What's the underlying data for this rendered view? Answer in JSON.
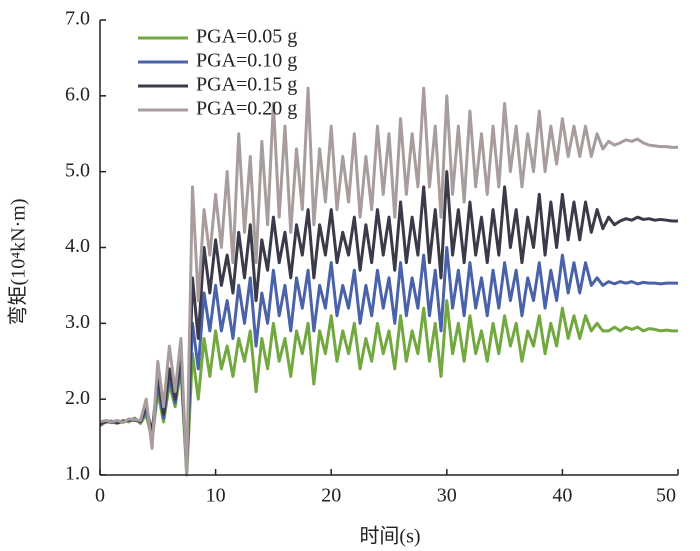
{
  "chart_data": {
    "type": "line",
    "xlabel": "时间(s)",
    "ylabel": "弯矩(10⁴kN·m)",
    "xlim": [
      0,
      50
    ],
    "xticks": [
      0,
      10,
      20,
      30,
      40,
      50
    ],
    "ylim": [
      1,
      7
    ],
    "yticks": [
      {
        "value": 1,
        "label": "1.0"
      },
      {
        "value": 2,
        "label": "2.0"
      },
      {
        "value": 3,
        "label": "3.0"
      },
      {
        "value": 4,
        "label": "4.0"
      },
      {
        "value": 5,
        "label": "5.0"
      },
      {
        "value": 6,
        "label": "6.0"
      },
      {
        "value": 7,
        "label": "7.0"
      }
    ],
    "grid": false,
    "legend": "upper left",
    "x": [
      0,
      0.5,
      1,
      1.5,
      2,
      2.5,
      3,
      3.5,
      4,
      4.5,
      5,
      5.5,
      6,
      6.5,
      7,
      7.5,
      8,
      8.5,
      9,
      9.5,
      10,
      10.5,
      11,
      11.5,
      12,
      12.5,
      13,
      13.5,
      14,
      14.5,
      15,
      15.5,
      16,
      16.5,
      17,
      17.5,
      18,
      18.5,
      19,
      19.5,
      20,
      20.5,
      21,
      21.5,
      22,
      22.5,
      23,
      23.5,
      24,
      24.5,
      25,
      25.5,
      26,
      26.5,
      27,
      27.5,
      28,
      28.5,
      29,
      29.5,
      30,
      30.5,
      31,
      31.5,
      32,
      32.5,
      33,
      33.5,
      34,
      34.5,
      35,
      35.5,
      36,
      36.5,
      37,
      37.5,
      38,
      38.5,
      39,
      39.5,
      40,
      40.5,
      41,
      41.5,
      42,
      42.5,
      43,
      43.5,
      44,
      44.5,
      45,
      45.5,
      46,
      46.5,
      47,
      47.5,
      48,
      48.5,
      49,
      49.5,
      50
    ],
    "series": [
      {
        "name": "PGA=0.05 g",
        "color": "#72a840",
        "values": [
          1.65,
          1.7,
          1.7,
          1.68,
          1.72,
          1.7,
          1.75,
          1.68,
          1.8,
          1.45,
          2.1,
          1.7,
          2.2,
          1.9,
          2.4,
          1.0,
          2.6,
          2.0,
          2.8,
          2.3,
          2.9,
          2.4,
          2.7,
          2.3,
          2.8,
          2.5,
          2.9,
          2.1,
          2.8,
          2.4,
          3.0,
          2.5,
          2.8,
          2.3,
          2.9,
          2.6,
          3.0,
          2.2,
          2.9,
          2.6,
          3.1,
          2.5,
          2.9,
          2.6,
          3.0,
          2.4,
          2.8,
          2.5,
          3.0,
          2.6,
          2.9,
          2.4,
          3.1,
          2.5,
          2.9,
          2.6,
          3.2,
          2.5,
          3.0,
          2.3,
          3.3,
          2.6,
          3.0,
          2.5,
          3.1,
          2.6,
          2.9,
          2.5,
          3.0,
          2.6,
          3.1,
          2.7,
          3.0,
          2.5,
          2.9,
          2.7,
          3.1,
          2.6,
          3.0,
          2.7,
          3.2,
          2.8,
          3.1,
          2.8,
          3.1,
          2.9,
          3.0,
          2.9,
          2.9,
          2.95,
          2.9,
          2.95,
          2.92,
          2.95,
          2.9,
          2.93,
          2.92,
          2.9,
          2.91,
          2.9,
          2.9
        ]
      },
      {
        "name": "PGA=0.10 g",
        "color": "#4a63a8",
        "values": [
          1.66,
          1.71,
          1.69,
          1.7,
          1.71,
          1.72,
          1.74,
          1.7,
          1.85,
          1.5,
          2.2,
          1.75,
          2.3,
          1.95,
          2.5,
          1.1,
          3.0,
          2.4,
          3.4,
          2.9,
          3.5,
          2.9,
          3.3,
          2.8,
          3.5,
          3.0,
          3.6,
          2.7,
          3.4,
          3.0,
          3.7,
          3.1,
          3.5,
          2.9,
          3.6,
          3.2,
          3.7,
          2.9,
          3.5,
          3.2,
          3.8,
          3.1,
          3.5,
          3.2,
          3.7,
          3.0,
          3.5,
          3.1,
          3.7,
          3.2,
          3.6,
          3.0,
          3.8,
          3.1,
          3.6,
          3.2,
          3.9,
          3.1,
          3.7,
          2.9,
          4.0,
          3.2,
          3.7,
          3.1,
          3.8,
          3.2,
          3.6,
          3.1,
          3.7,
          3.2,
          3.8,
          3.3,
          3.7,
          3.1,
          3.6,
          3.3,
          3.8,
          3.2,
          3.7,
          3.3,
          3.9,
          3.4,
          3.8,
          3.4,
          3.8,
          3.5,
          3.6,
          3.5,
          3.55,
          3.52,
          3.55,
          3.53,
          3.55,
          3.52,
          3.54,
          3.53,
          3.53,
          3.52,
          3.53,
          3.53,
          3.53
        ]
      },
      {
        "name": "PGA=0.15 g",
        "color": "#3a3a48",
        "values": [
          1.68,
          1.7,
          1.71,
          1.69,
          1.7,
          1.73,
          1.72,
          1.71,
          1.9,
          1.55,
          2.3,
          1.8,
          2.4,
          2.0,
          2.6,
          1.05,
          3.6,
          2.8,
          4.0,
          3.4,
          4.1,
          3.5,
          3.9,
          3.4,
          4.2,
          3.6,
          4.3,
          3.3,
          4.1,
          3.7,
          4.4,
          3.8,
          4.2,
          3.6,
          4.3,
          3.9,
          4.5,
          3.6,
          4.3,
          3.9,
          4.5,
          3.8,
          4.2,
          3.9,
          4.4,
          3.7,
          4.3,
          3.8,
          4.5,
          3.9,
          4.4,
          3.7,
          4.6,
          3.8,
          4.4,
          3.9,
          4.8,
          3.8,
          4.5,
          3.6,
          5.0,
          3.9,
          4.5,
          3.8,
          4.6,
          3.9,
          4.4,
          3.8,
          4.5,
          3.9,
          4.8,
          4.0,
          4.5,
          3.8,
          4.4,
          4.0,
          4.7,
          3.9,
          4.6,
          4.0,
          4.7,
          4.1,
          4.6,
          4.1,
          4.6,
          4.2,
          4.5,
          4.25,
          4.4,
          4.3,
          4.35,
          4.38,
          4.36,
          4.4,
          4.37,
          4.38,
          4.36,
          4.37,
          4.36,
          4.35,
          4.35
        ]
      },
      {
        "name": "PGA=0.20 g",
        "color": "#a89c9c",
        "values": [
          1.7,
          1.72,
          1.7,
          1.72,
          1.69,
          1.74,
          1.73,
          1.72,
          2.0,
          1.35,
          2.5,
          1.9,
          2.7,
          2.1,
          2.8,
          1.0,
          4.8,
          3.3,
          4.5,
          3.9,
          4.7,
          4.0,
          5.0,
          3.8,
          5.5,
          4.2,
          5.2,
          3.8,
          5.4,
          4.3,
          5.9,
          4.4,
          5.6,
          4.2,
          5.3,
          4.5,
          6.1,
          4.3,
          5.3,
          4.6,
          5.6,
          4.5,
          5.2,
          4.6,
          5.5,
          4.4,
          5.2,
          4.5,
          5.6,
          4.7,
          5.5,
          4.4,
          5.7,
          4.7,
          5.5,
          4.8,
          6.1,
          4.8,
          5.6,
          4.4,
          6.0,
          4.7,
          5.6,
          4.6,
          5.8,
          4.8,
          5.5,
          4.7,
          5.6,
          4.8,
          5.9,
          5.0,
          5.6,
          4.8,
          5.5,
          5.0,
          5.8,
          5.0,
          5.6,
          5.1,
          5.7,
          5.2,
          5.6,
          5.2,
          5.6,
          5.2,
          5.5,
          5.3,
          5.4,
          5.35,
          5.38,
          5.42,
          5.4,
          5.43,
          5.38,
          5.35,
          5.34,
          5.33,
          5.33,
          5.32,
          5.32
        ]
      }
    ]
  }
}
